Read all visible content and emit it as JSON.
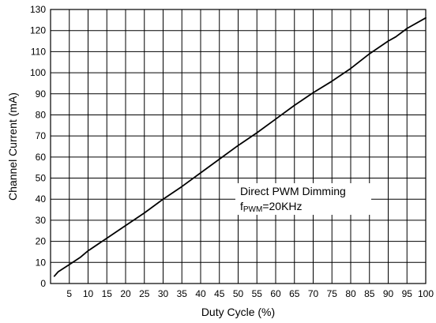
{
  "chart_data": {
    "type": "line",
    "title": "",
    "xlabel": "Duty Cycle (%)",
    "ylabel": "Channel Current (mA)",
    "xlim": [
      0,
      100
    ],
    "ylim": [
      0,
      130
    ],
    "xticks": [
      5,
      10,
      15,
      20,
      25,
      30,
      35,
      40,
      45,
      50,
      55,
      60,
      65,
      70,
      75,
      80,
      85,
      90,
      95,
      100
    ],
    "yticks": [
      0,
      10,
      20,
      30,
      40,
      50,
      60,
      70,
      80,
      90,
      100,
      110,
      120,
      130
    ],
    "grid": true,
    "legend": "none",
    "annotation": {
      "line1": "Direct PWM Dimming",
      "line2_prefix": "f",
      "line2_subscript": "PWM",
      "line2_suffix": "=20KHz"
    },
    "series": [
      {
        "color": "#000000",
        "x": [
          1,
          2,
          5,
          8,
          10,
          15,
          20,
          25,
          30,
          35,
          40,
          45,
          50,
          55,
          60,
          65,
          70,
          75,
          80,
          85,
          90,
          92,
          95,
          100
        ],
        "y": [
          3.5,
          5.5,
          9,
          12.5,
          15.5,
          21.5,
          27.5,
          33.5,
          40,
          46,
          52.5,
          59,
          65.5,
          71.5,
          78,
          84.5,
          90.5,
          96,
          102,
          109,
          115,
          117,
          121,
          126
        ]
      }
    ]
  }
}
